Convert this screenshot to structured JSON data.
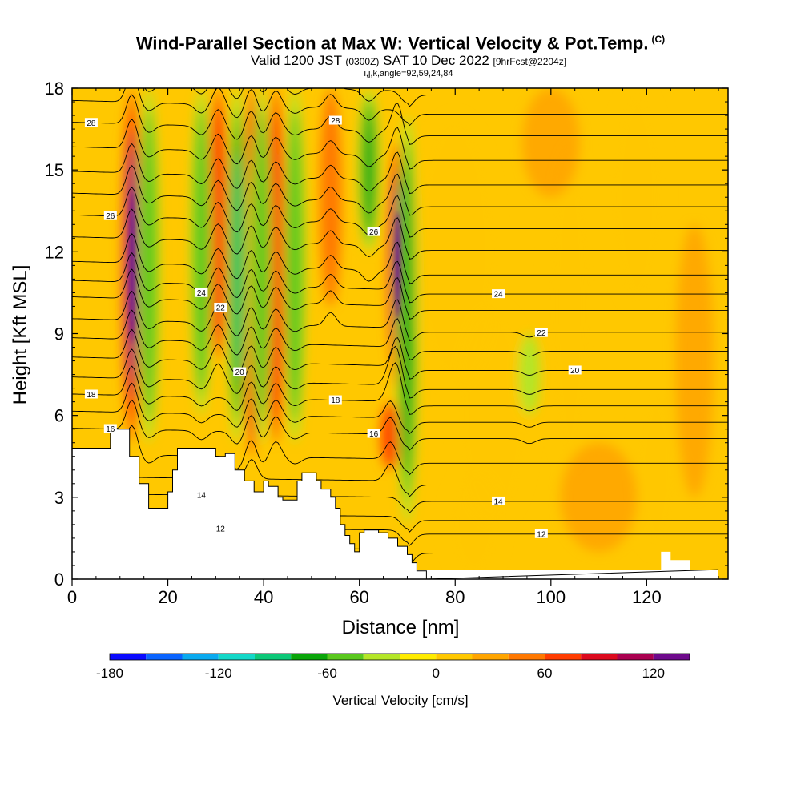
{
  "header": {
    "title": "Wind-Parallel Section at Max W: Vertical Velocity & Pot.Temp.",
    "title_tag": "(C)",
    "valid_prefix": "Valid 1200 JST",
    "valid_utc": "(0300Z)",
    "valid_date": "SAT 10 Dec 2022",
    "forecast": "[9hrFcst@2204z]",
    "indices": "i,j,k,angle=92,59,24,84"
  },
  "chart_data": {
    "type": "heatmap",
    "xlabel": "Distance [nm]",
    "ylabel": "Height [Kft MSL]",
    "xlim": [
      0,
      137
    ],
    "ylim": [
      0,
      18
    ],
    "x_ticks": [
      0,
      20,
      40,
      60,
      80,
      100,
      120
    ],
    "y_ticks": [
      0,
      3,
      6,
      9,
      12,
      15,
      18
    ],
    "grid": false,
    "colorbar": {
      "title": "Vertical Velocity [cm/s]",
      "min": -180,
      "max": 140,
      "step": 20,
      "tick_labels": [
        "-180",
        "-120",
        "-60",
        "0",
        "60",
        "120"
      ],
      "tick_values": [
        -180,
        -120,
        -60,
        0,
        60,
        120
      ],
      "colors": [
        "#0a0aff",
        "#0a64ff",
        "#0aaaf0",
        "#14d8c8",
        "#0cc878",
        "#0aa60a",
        "#5ac81e",
        "#b4e628",
        "#ffec00",
        "#ffc800",
        "#ffa500",
        "#ff7800",
        "#ff3c00",
        "#dc0a1e",
        "#aa0050",
        "#6e0a8c"
      ]
    },
    "updrafts_cm_s": [
      {
        "x": 12.5,
        "z_bottom": 5,
        "z_top": 18,
        "peak": 120
      },
      {
        "x": 30.5,
        "z_bottom": 8,
        "z_top": 18,
        "peak": 70
      },
      {
        "x": 37.5,
        "z_bottom": 4.5,
        "z_top": 18,
        "peak": 80
      },
      {
        "x": 42.5,
        "z_bottom": 5,
        "z_top": 18,
        "peak": 65
      },
      {
        "x": 54,
        "z_bottom": 10,
        "z_top": 18,
        "peak": 55
      },
      {
        "x": 66.5,
        "z_bottom": 4,
        "z_top": 6.5,
        "peak": 70
      },
      {
        "x": 68,
        "z_bottom": 7,
        "z_top": 16,
        "peak": 130
      }
    ],
    "downdrafts_cm_s": [
      {
        "x": 16,
        "z_bottom": 5,
        "z_top": 18,
        "peak": -50
      },
      {
        "x": 27,
        "z_bottom": 6,
        "z_top": 18,
        "peak": -55
      },
      {
        "x": 34.5,
        "z_bottom": 5,
        "z_top": 18,
        "peak": -80
      },
      {
        "x": 39.5,
        "z_bottom": 5,
        "z_top": 18,
        "peak": -55
      },
      {
        "x": 46.5,
        "z_bottom": 5,
        "z_top": 18,
        "peak": -40
      },
      {
        "x": 62,
        "z_bottom": 12,
        "z_top": 18,
        "peak": -70
      },
      {
        "x": 70,
        "z_bottom": 2,
        "z_top": 17,
        "peak": -75
      },
      {
        "x": 95.5,
        "z_bottom": 6,
        "z_top": 9,
        "peak": -30
      }
    ],
    "isentropes_C": [
      {
        "label": "28",
        "base_height": 16.4
      },
      {
        "label": "26",
        "base_height": 13.0
      },
      {
        "label": "24",
        "base_height": 10.6
      },
      {
        "label": "22",
        "base_height": 9.2
      },
      {
        "label": "20",
        "base_height": 7.8
      },
      {
        "label": "18",
        "base_height": 6.5
      },
      {
        "label": "16",
        "base_height": 5.3
      },
      {
        "label": "14",
        "base_height": 3.0
      },
      {
        "label": "12",
        "base_height": 1.8
      }
    ]
  }
}
